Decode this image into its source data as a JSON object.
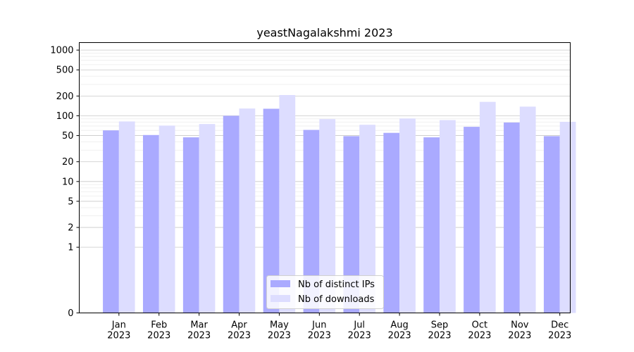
{
  "chart_data": {
    "type": "bar",
    "title": "yeastNagalakshmi 2023",
    "xlabel": "",
    "ylabel": "",
    "y_scale": "symlog",
    "ylim": [
      0,
      1300
    ],
    "y_ticks": [
      0,
      1,
      2,
      5,
      10,
      20,
      50,
      100,
      200,
      500,
      1000
    ],
    "y_tick_labels": [
      "0",
      "1",
      "2",
      "5",
      "10",
      "20",
      "50",
      "100",
      "200",
      "500",
      "1000"
    ],
    "grid": true,
    "legend_position": "bottom-center",
    "categories": [
      "Jan\n2023",
      "Feb\n2023",
      "Mar\n2023",
      "Apr\n2023",
      "May\n2023",
      "Jun\n2023",
      "Jul\n2023",
      "Aug\n2023",
      "Sep\n2023",
      "Oct\n2023",
      "Nov\n2023",
      "Dec\n2023"
    ],
    "category_lines": [
      [
        "Jan",
        "2023"
      ],
      [
        "Feb",
        "2023"
      ],
      [
        "Mar",
        "2023"
      ],
      [
        "Apr",
        "2023"
      ],
      [
        "May",
        "2023"
      ],
      [
        "Jun",
        "2023"
      ],
      [
        "Jul",
        "2023"
      ],
      [
        "Aug",
        "2023"
      ],
      [
        "Sep",
        "2023"
      ],
      [
        "Oct",
        "2023"
      ],
      [
        "Nov",
        "2023"
      ],
      [
        "Dec",
        "2023"
      ]
    ],
    "series": [
      {
        "name": "Nb of distinct IPs",
        "color": "#aaaaff",
        "values": [
          60,
          51,
          47,
          100,
          128,
          61,
          49,
          55,
          47,
          68,
          79,
          49
        ]
      },
      {
        "name": "Nb of downloads",
        "color": "#ddddff",
        "values": [
          82,
          71,
          75,
          129,
          207,
          89,
          73,
          91,
          86,
          163,
          138,
          81
        ]
      }
    ]
  }
}
